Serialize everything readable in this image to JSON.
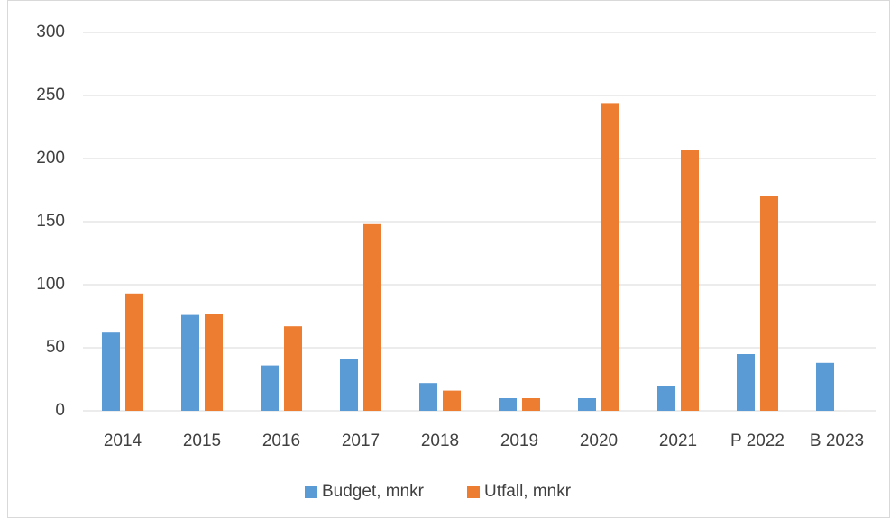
{
  "chart_data": {
    "type": "bar",
    "categories": [
      "2014",
      "2015",
      "2016",
      "2017",
      "2018",
      "2019",
      "2020",
      "2021",
      "P 2022",
      "B 2023"
    ],
    "series": [
      {
        "name": "Budget, mnkr",
        "color": "#5b9bd5",
        "values": [
          62,
          76,
          36,
          41,
          22,
          10,
          10,
          20,
          45,
          38
        ]
      },
      {
        "name": "Utfall, mnkr",
        "color": "#ed7d31",
        "values": [
          93,
          77,
          67,
          148,
          16,
          10,
          244,
          207,
          170,
          null
        ]
      }
    ],
    "ylim": [
      0,
      300
    ],
    "yticks": [
      0,
      50,
      100,
      150,
      200,
      250,
      300
    ],
    "grid": true,
    "legend": "bottom"
  }
}
